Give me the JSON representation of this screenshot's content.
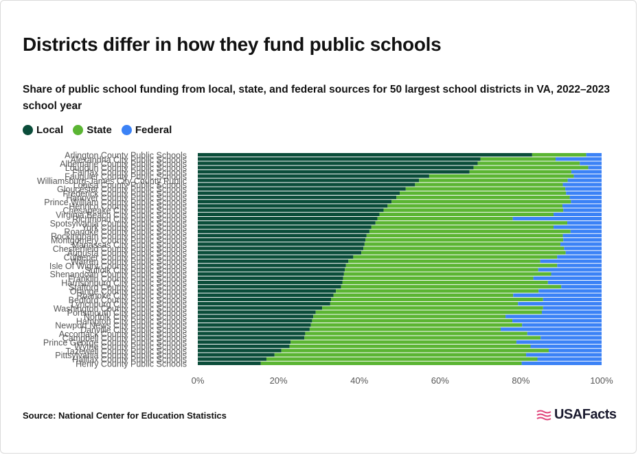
{
  "header": {
    "title": "Districts differ in how they fund public schools",
    "subtitle": "Share of public school funding from local, state, and federal sources for 50 largest school districts in VA, 2022–2023 school year"
  },
  "legend": [
    {
      "label": "Local",
      "color": "#0b4d3a"
    },
    {
      "label": "State",
      "color": "#5bb533"
    },
    {
      "label": "Federal",
      "color": "#3b82f6"
    }
  ],
  "footer": {
    "source": "Source: National Center for Education Statistics",
    "logo": "USAFacts"
  },
  "chart_data": {
    "type": "bar",
    "orientation": "horizontal",
    "stacked": true,
    "x_tick_labels": [
      "0%",
      "20%",
      "40%",
      "60%",
      "80%",
      "100%"
    ],
    "xlim": [
      0,
      100
    ],
    "categories": [
      "Arlington County Public Schools",
      "Alexandria City Public Schools",
      "Albemarle County Public Schools",
      "Loudoun County Public Schools",
      "Fairfax County Public Schools",
      "Fauquier County Public Schools",
      "Williamsburg-James City County Public",
      "Louisa County Public Schools",
      "Gloucester County Public Schools",
      "Frederick County Public Schools",
      "Hanover County Public Schools",
      "Prince William County Public Schools",
      "Henrico County Public Schools",
      "Chesapeake City Public Schools",
      "Virginia Beach City Public Schools",
      "Richmond City Public Schools",
      "Spotsylvania County Public Schools",
      "York County Public Schools",
      "Roanoke County Public Schools",
      "Rockingham County Public Schools",
      "Montgomery County Public Schools",
      "Manassas City Public Schools",
      "Chesterfield County Public Schools",
      "Augusta County Public Schools",
      "Culpeper County Public Schools",
      "Warren County Public Schools",
      "Isle Of Wight County Public Schools",
      "Suffolk City Public Schools",
      "Shenandoah County Public Schools",
      "Franklin County Public Schools",
      "Harrisonburg City Public Schools",
      "Stafford County Public Schools",
      "Orange County Public Schools",
      "Roanoke City Public Schools",
      "Bedford County Public Schools",
      "Lynchburg City Public Schools",
      "Washington County Public Schools",
      "Portsmouth City Public Schools",
      "Norfolk City Public Schools",
      "Hampton City Public Schools",
      "Newport News City Public Schools",
      "Danville City Public Schools",
      "Accomack County Public Schools",
      "Campbell County Public Schools",
      "Prince George County Public Schools",
      "Wythe County Public Schools",
      "Tazewell County Public Schools",
      "Pittsylvania County Public Schools",
      "Halifax County Public Schools",
      "Henry County Public Schools"
    ],
    "series": [
      {
        "name": "Local",
        "color": "#0b4d3a",
        "values": [
          82.8,
          70.0,
          69.3,
          68.3,
          67.3,
          57.3,
          54.8,
          53.8,
          51.5,
          50.0,
          49.2,
          48.0,
          47.0,
          46.0,
          45.0,
          44.5,
          44.0,
          43.0,
          42.5,
          41.8,
          41.5,
          41.3,
          41.0,
          40.5,
          38.5,
          37.3,
          36.7,
          36.4,
          36.2,
          36.0,
          35.8,
          35.5,
          34.2,
          33.6,
          33.0,
          32.8,
          30.8,
          29.2,
          28.6,
          28.3,
          28.0,
          27.7,
          26.6,
          26.4,
          23.0,
          22.7,
          20.7,
          19.0,
          17.0,
          15.6
        ]
      },
      {
        "name": "State",
        "color": "#5bb533",
        "values": [
          13.4,
          18.6,
          25.3,
          28.4,
          25.2,
          35.8,
          36.8,
          36.6,
          39.5,
          41.2,
          42.9,
          44.4,
          43.3,
          44.5,
          43.1,
          33.5,
          47.5,
          45.1,
          49.8,
          48.6,
          49.0,
          48.5,
          49.7,
          50.6,
          50.5,
          47.5,
          52.3,
          47.9,
          51.3,
          47.1,
          50.9,
          54.5,
          50.2,
          44.5,
          52.5,
          46.5,
          54.7,
          56.0,
          47.6,
          49.6,
          52.3,
          47.3,
          55.0,
          58.5,
          55.9,
          59.7,
          66.2,
          62.3,
          67.1,
          64.6
        ]
      },
      {
        "name": "Federal",
        "color": "#3b82f6",
        "values": [
          3.8,
          11.4,
          5.4,
          3.3,
          7.5,
          6.9,
          8.4,
          9.6,
          9.0,
          8.8,
          7.9,
          7.6,
          9.7,
          9.5,
          11.9,
          22.0,
          8.5,
          11.9,
          7.7,
          9.6,
          9.5,
          10.2,
          9.3,
          8.9,
          11.0,
          15.2,
          11.0,
          15.7,
          12.5,
          16.9,
          13.3,
          10.0,
          15.6,
          21.9,
          14.5,
          20.7,
          14.5,
          14.8,
          23.8,
          22.1,
          19.7,
          25.0,
          18.4,
          15.1,
          21.1,
          17.6,
          13.1,
          18.7,
          15.9,
          19.8
        ]
      }
    ]
  }
}
